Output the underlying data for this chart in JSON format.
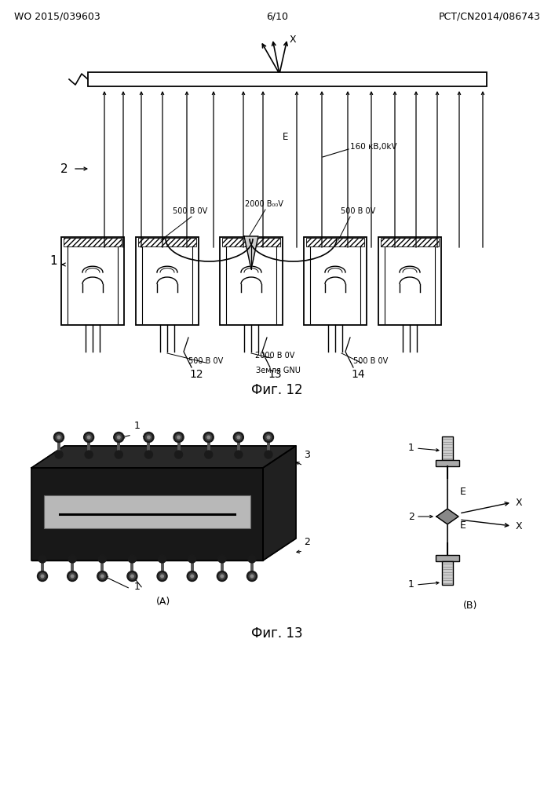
{
  "bg_color": "#ffffff",
  "header_left": "WO 2015/039603",
  "header_right": "PCT/CN2014/086743",
  "header_center": "6/10",
  "fig12_caption": "Фиг. 12",
  "fig13_caption": "Фиг. 13",
  "label_X": "X",
  "label_E": "E",
  "label_160kV": "160 кВ,0kV",
  "label_500V_left_top": "500 В 0V",
  "label_2000V_top": "2000 В₀₀V",
  "label_500V_right_top": "500 В 0V",
  "label_500V_left_bot": "500 В 0V",
  "label_2000V_bot": "2000 В 0V",
  "label_500V_right_bot": "500 В 0V",
  "label_zemlya": "Земля GNU",
  "label_1_fig12": "1",
  "label_2_fig12": "2",
  "label_12": "12",
  "label_13": "13",
  "label_14": "14",
  "label_A": "(A)",
  "label_B": "(B)",
  "label_1_A": "1",
  "label_2_A": "2",
  "label_3_A": "3",
  "label_1_B_top": "1",
  "label_2_B": "2",
  "label_1_B_bot": "1",
  "label_E_B": "E",
  "label_X_B": "X"
}
